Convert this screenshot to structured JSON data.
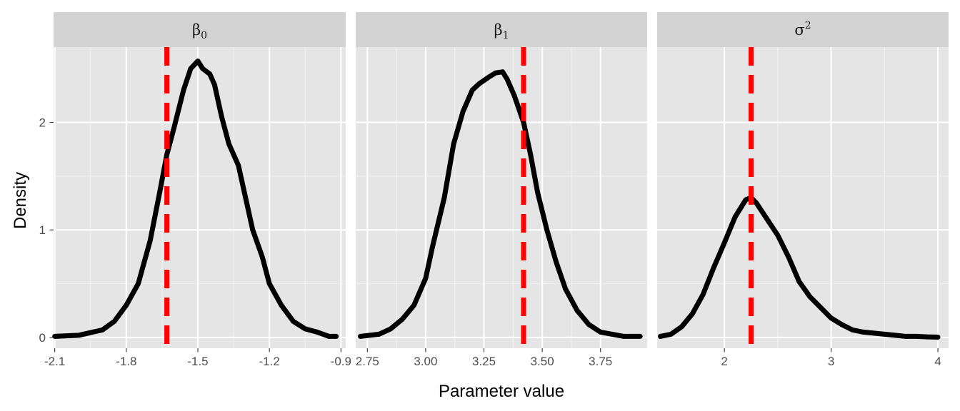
{
  "chart_data": {
    "type": "line",
    "ylabel": "Density",
    "xlabel": "Parameter value",
    "ylim": [
      -0.1,
      2.7
    ],
    "yticks": [
      0,
      1,
      2
    ],
    "ytick_labels": [
      "0",
      "1",
      "2"
    ],
    "grid": true,
    "line_color": "#000000",
    "reference_color": "#ff0000",
    "panel_background": "#e5e5e5",
    "strip_background": "#d3d3d3",
    "facets": [
      {
        "name": "beta0",
        "strip_symbol": "β",
        "strip_script": "0",
        "strip_script_type": "sub",
        "xlim": [
          -2.105,
          -0.88
        ],
        "xticks": [
          -2.1,
          -1.8,
          -1.5,
          -1.2,
          -0.9
        ],
        "xtick_labels": [
          "-2.1",
          "-1.8",
          "-1.5",
          "-1.2",
          "-0.9"
        ],
        "reference_x": -1.63,
        "curve": {
          "x": [
            -2.1,
            -2.0,
            -1.9,
            -1.85,
            -1.8,
            -1.75,
            -1.7,
            -1.66,
            -1.63,
            -1.6,
            -1.56,
            -1.53,
            -1.5,
            -1.48,
            -1.45,
            -1.43,
            -1.4,
            -1.37,
            -1.33,
            -1.3,
            -1.27,
            -1.23,
            -1.2,
            -1.15,
            -1.1,
            -1.05,
            -1.0,
            -0.95,
            -0.92
          ],
          "y": [
            0.01,
            0.02,
            0.07,
            0.15,
            0.3,
            0.5,
            0.9,
            1.35,
            1.7,
            1.95,
            2.3,
            2.5,
            2.57,
            2.5,
            2.45,
            2.35,
            2.05,
            1.8,
            1.6,
            1.3,
            1.0,
            0.75,
            0.5,
            0.3,
            0.15,
            0.08,
            0.05,
            0.01,
            0.01
          ]
        }
      },
      {
        "name": "beta1",
        "strip_symbol": "β",
        "strip_script": "1",
        "strip_script_type": "sub",
        "xlim": [
          2.7,
          3.95
        ],
        "xticks": [
          2.75,
          3.0,
          3.25,
          3.5,
          3.75
        ],
        "xtick_labels": [
          "2.75",
          "3.00",
          "3.25",
          "3.50",
          "3.75"
        ],
        "reference_x": 3.42,
        "curve": {
          "x": [
            2.72,
            2.8,
            2.85,
            2.9,
            2.95,
            3.0,
            3.03,
            3.08,
            3.12,
            3.16,
            3.2,
            3.23,
            3.27,
            3.3,
            3.33,
            3.35,
            3.38,
            3.42,
            3.45,
            3.48,
            3.52,
            3.56,
            3.6,
            3.65,
            3.7,
            3.75,
            3.8,
            3.85,
            3.92
          ],
          "y": [
            0.01,
            0.03,
            0.08,
            0.17,
            0.3,
            0.55,
            0.85,
            1.3,
            1.8,
            2.1,
            2.3,
            2.36,
            2.42,
            2.46,
            2.47,
            2.4,
            2.25,
            2.0,
            1.7,
            1.35,
            1.0,
            0.7,
            0.45,
            0.25,
            0.12,
            0.05,
            0.03,
            0.01,
            0.01
          ]
        }
      },
      {
        "name": "sigma2",
        "strip_symbol": "σ",
        "strip_script": "2",
        "strip_script_type": "sup",
        "xlim": [
          1.37,
          4.1
        ],
        "xticks": [
          2,
          3,
          4
        ],
        "xtick_labels": [
          "2",
          "3",
          "4"
        ],
        "reference_x": 2.25,
        "curve": {
          "x": [
            1.4,
            1.5,
            1.6,
            1.7,
            1.8,
            1.9,
            2.0,
            2.1,
            2.2,
            2.25,
            2.3,
            2.4,
            2.5,
            2.6,
            2.7,
            2.8,
            2.9,
            3.0,
            3.1,
            3.2,
            3.3,
            3.4,
            3.5,
            3.6,
            3.7,
            3.8,
            3.9,
            4.0
          ],
          "y": [
            0.01,
            0.03,
            0.1,
            0.22,
            0.4,
            0.65,
            0.88,
            1.12,
            1.28,
            1.3,
            1.25,
            1.1,
            0.95,
            0.75,
            0.52,
            0.38,
            0.28,
            0.18,
            0.12,
            0.07,
            0.05,
            0.04,
            0.03,
            0.02,
            0.01,
            0.01,
            0.005,
            0.003
          ]
        }
      }
    ]
  }
}
